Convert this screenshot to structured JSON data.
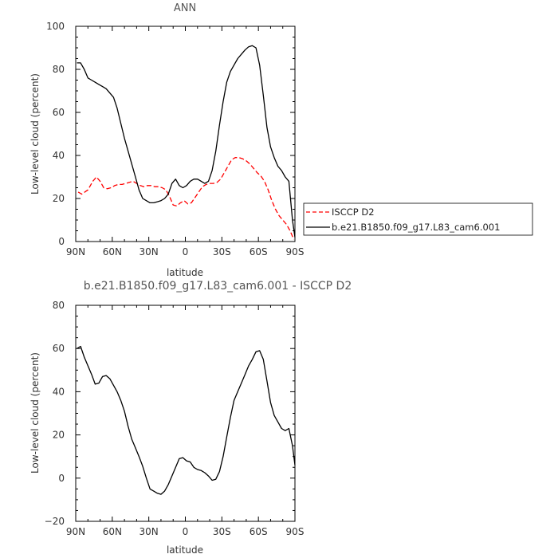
{
  "chart_data": [
    {
      "type": "line",
      "title": "ANN",
      "xlabel": "latitude",
      "ylabel": "Low-level cloud (percent)",
      "xlim": [
        90,
        -90
      ],
      "ylim": [
        0,
        100
      ],
      "x_ticks": [
        90,
        60,
        30,
        0,
        -30,
        -60,
        -90
      ],
      "x_tick_labels": [
        "90N",
        "60N",
        "30N",
        "0",
        "30S",
        "60S",
        "90S"
      ],
      "y_ticks": [
        0,
        20,
        40,
        60,
        80,
        100
      ],
      "y_tick_labels": [
        "0",
        "20",
        "40",
        "60",
        "80",
        "100"
      ],
      "grid": false,
      "legend_position": "right",
      "series": [
        {
          "name": "ISCCP D2",
          "color": "#ff0000",
          "dash": true,
          "x": [
            88,
            85,
            80,
            76,
            73,
            70,
            67,
            64,
            61,
            58,
            55,
            52,
            49,
            46,
            43,
            40,
            37,
            34,
            31,
            28,
            25,
            22,
            19,
            16,
            13,
            10,
            7,
            4,
            1,
            -2,
            -5,
            -8,
            -11,
            -14,
            -17,
            -20,
            -23,
            -26,
            -29,
            -32,
            -35,
            -38,
            -41,
            -44,
            -47,
            -50,
            -53,
            -56,
            -59,
            -62,
            -65,
            -68,
            -71,
            -74,
            -77,
            -80,
            -83,
            -86,
            -89
          ],
          "y": [
            23,
            22,
            24,
            28,
            30,
            28,
            25,
            24.5,
            25,
            26,
            26.5,
            26.5,
            27,
            27.5,
            28,
            27,
            26,
            25.5,
            26,
            26,
            25.5,
            25.5,
            25,
            24,
            21,
            17,
            16.5,
            18,
            19,
            17.5,
            18,
            20.5,
            23,
            25.5,
            26.5,
            27,
            27,
            27.5,
            29,
            32,
            35,
            38,
            39,
            39,
            38.5,
            37.5,
            36,
            34,
            32,
            30.5,
            28,
            24,
            19,
            15,
            12,
            10,
            8,
            5,
            1
          ]
        },
        {
          "name": "b.e21.B1850.f09_g17.L83_cam6.001",
          "color": "#000000",
          "dash": false,
          "x": [
            89,
            86,
            83,
            80,
            77,
            74,
            71,
            68,
            65,
            62,
            59,
            56,
            53,
            50,
            47,
            44,
            41,
            38,
            35,
            32,
            29,
            26,
            23,
            20,
            17,
            14,
            11,
            8,
            5,
            2,
            -1,
            -4,
            -7,
            -10,
            -13,
            -16,
            -19,
            -22,
            -25,
            -28,
            -31,
            -34,
            -37,
            -40,
            -43,
            -46,
            -49,
            -52,
            -55,
            -58,
            -61,
            -64,
            -67,
            -70,
            -73,
            -76,
            -79,
            -82,
            -85,
            -88,
            -90
          ],
          "y": [
            83,
            83,
            80,
            76,
            75,
            74,
            73,
            72,
            71,
            69,
            67,
            62,
            55,
            48,
            42,
            36,
            30,
            24,
            20,
            19,
            18,
            18,
            18.5,
            19,
            20,
            22,
            27,
            29,
            26,
            25,
            26,
            28,
            29,
            29,
            28,
            27,
            28,
            33,
            42,
            54,
            65,
            74,
            79,
            82,
            85,
            87,
            89,
            90.5,
            91,
            90,
            82,
            68,
            53,
            44,
            39,
            35,
            33,
            30,
            28,
            10,
            2
          ]
        }
      ]
    },
    {
      "type": "line",
      "title": "b.e21.B1850.f09_g17.L83_cam6.001 - ISCCP D2",
      "xlabel": "latitude",
      "ylabel": "Low-level cloud (percent)",
      "xlim": [
        90,
        -90
      ],
      "ylim": [
        -20,
        80
      ],
      "x_ticks": [
        90,
        60,
        30,
        0,
        -30,
        -60,
        -90
      ],
      "x_tick_labels": [
        "90N",
        "60N",
        "30N",
        "0",
        "30S",
        "60S",
        "90S"
      ],
      "y_ticks": [
        -20,
        0,
        20,
        40,
        60,
        80
      ],
      "y_tick_labels": [
        "−20",
        "0",
        "20",
        "40",
        "60",
        "80"
      ],
      "grid": false,
      "series": [
        {
          "color": "#000000",
          "dash": false,
          "x": [
            89,
            86,
            83,
            80,
            77,
            74,
            71,
            68,
            65,
            62,
            59,
            56,
            53,
            50,
            47,
            44,
            41,
            38,
            35,
            32,
            29,
            26,
            23,
            20,
            17,
            14,
            11,
            8,
            5,
            2,
            -1,
            -4,
            -7,
            -10,
            -13,
            -16,
            -19,
            -22,
            -25,
            -28,
            -31,
            -34,
            -37,
            -40,
            -43,
            -46,
            -49,
            -52,
            -55,
            -58,
            -61,
            -64,
            -67,
            -70,
            -73,
            -76,
            -79,
            -82,
            -85,
            -88,
            -90
          ],
          "y": [
            60,
            61,
            56,
            52,
            48,
            43.5,
            44,
            47,
            47.5,
            46,
            43,
            40,
            36,
            31,
            24,
            18,
            14,
            10,
            5.5,
            0,
            -5,
            -6,
            -7,
            -7.5,
            -6,
            -3,
            1,
            5,
            9,
            9.5,
            8,
            7.5,
            5,
            4,
            3.5,
            2.5,
            1,
            -1,
            -0.5,
            3,
            10,
            19,
            28,
            36,
            40,
            44,
            48,
            52,
            55,
            58.5,
            59,
            55,
            45,
            35,
            29,
            26,
            23,
            22,
            23,
            15,
            6
          ]
        }
      ]
    }
  ]
}
